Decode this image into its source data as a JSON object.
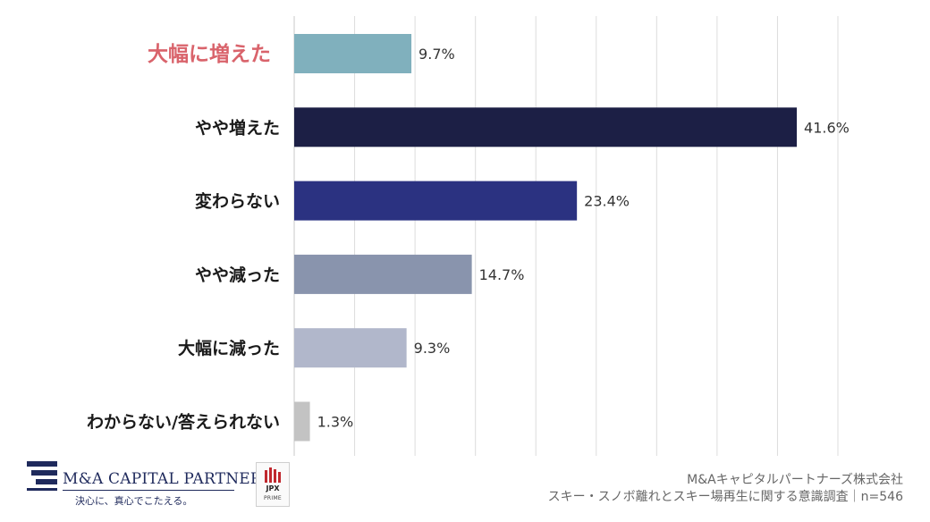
{
  "chart_data": {
    "type": "bar",
    "orientation": "horizontal",
    "categories": [
      "大幅に増えた",
      "やや増えた",
      "変わらない",
      "やや減った",
      "大幅に減った",
      "わからない/答えられない"
    ],
    "values": [
      9.7,
      41.6,
      23.4,
      14.7,
      9.3,
      1.3
    ],
    "value_labels": [
      "9.7%",
      "41.6%",
      "23.4%",
      "14.7%",
      "9.3%",
      "1.3%"
    ],
    "bar_colors": [
      "#80b0bd",
      "#1c1f45",
      "#2b3281",
      "#8994ad",
      "#b1b7cb",
      "#c3c3c3"
    ],
    "highlight_index": 0,
    "highlight_color": "#d9636b",
    "xlim": [
      0,
      45
    ],
    "grid": true,
    "legend": "none"
  },
  "branding": {
    "company_logo_name": "M&A CAPITAL PARTNERS",
    "company_tagline": "決心に、真心でこたえる。",
    "exchange_logo_name": "JPX",
    "exchange_logo_sub": "PRIME",
    "logo_color": "#1f2a5c",
    "jpx_color": "#c0272d"
  },
  "source": {
    "line1": "M&Aキャピタルパートナーズ株式会社",
    "line2": "スキー・スノボ離れとスキー場再生に関する意識調査｜n=546"
  }
}
